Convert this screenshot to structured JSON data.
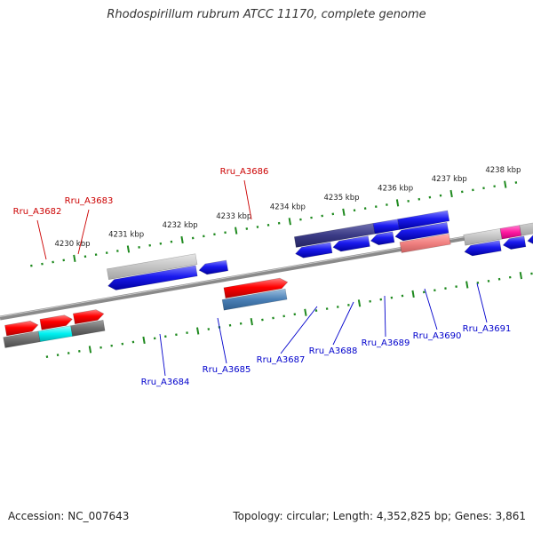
{
  "title": "Rhodospirillum rubrum ATCC 11170, complete genome",
  "footer": {
    "accession": "Accession: NC_007643",
    "summary": "Topology: circular; Length: 4,352,825 bp; Genes: 3,861"
  },
  "colors": {
    "backbone": "#8a8a8a",
    "ticks": "#1f8a1f",
    "label_forward": "#cc0000",
    "label_reverse": "#0000cc",
    "leader": "#1a1acc"
  },
  "ruler_labels": [
    {
      "kbp": 4230,
      "text": "4230 kbp"
    },
    {
      "kbp": 4231,
      "text": "4231 kbp"
    },
    {
      "kbp": 4232,
      "text": "4232 kbp"
    },
    {
      "kbp": 4233,
      "text": "4233 kbp"
    },
    {
      "kbp": 4234,
      "text": "4234 kbp"
    },
    {
      "kbp": 4235,
      "text": "4235 kbp"
    },
    {
      "kbp": 4236,
      "text": "4236 kbp"
    },
    {
      "kbp": 4237,
      "text": "4237 kbp"
    },
    {
      "kbp": 4238,
      "text": "4238 kbp"
    }
  ],
  "gene_labels": [
    {
      "name": "Rru_A3682",
      "strand": "forward"
    },
    {
      "name": "Rru_A3683",
      "strand": "forward"
    },
    {
      "name": "Rru_A3686",
      "strand": "forward"
    },
    {
      "name": "Rru_A3684",
      "strand": "reverse"
    },
    {
      "name": "Rru_A3685",
      "strand": "reverse"
    },
    {
      "name": "Rru_A3687",
      "strand": "reverse"
    },
    {
      "name": "Rru_A3688",
      "strand": "reverse"
    },
    {
      "name": "Rru_A3689",
      "strand": "reverse"
    },
    {
      "name": "Rru_A3690",
      "strand": "reverse"
    },
    {
      "name": "Rru_A3691",
      "strand": "reverse"
    }
  ]
}
